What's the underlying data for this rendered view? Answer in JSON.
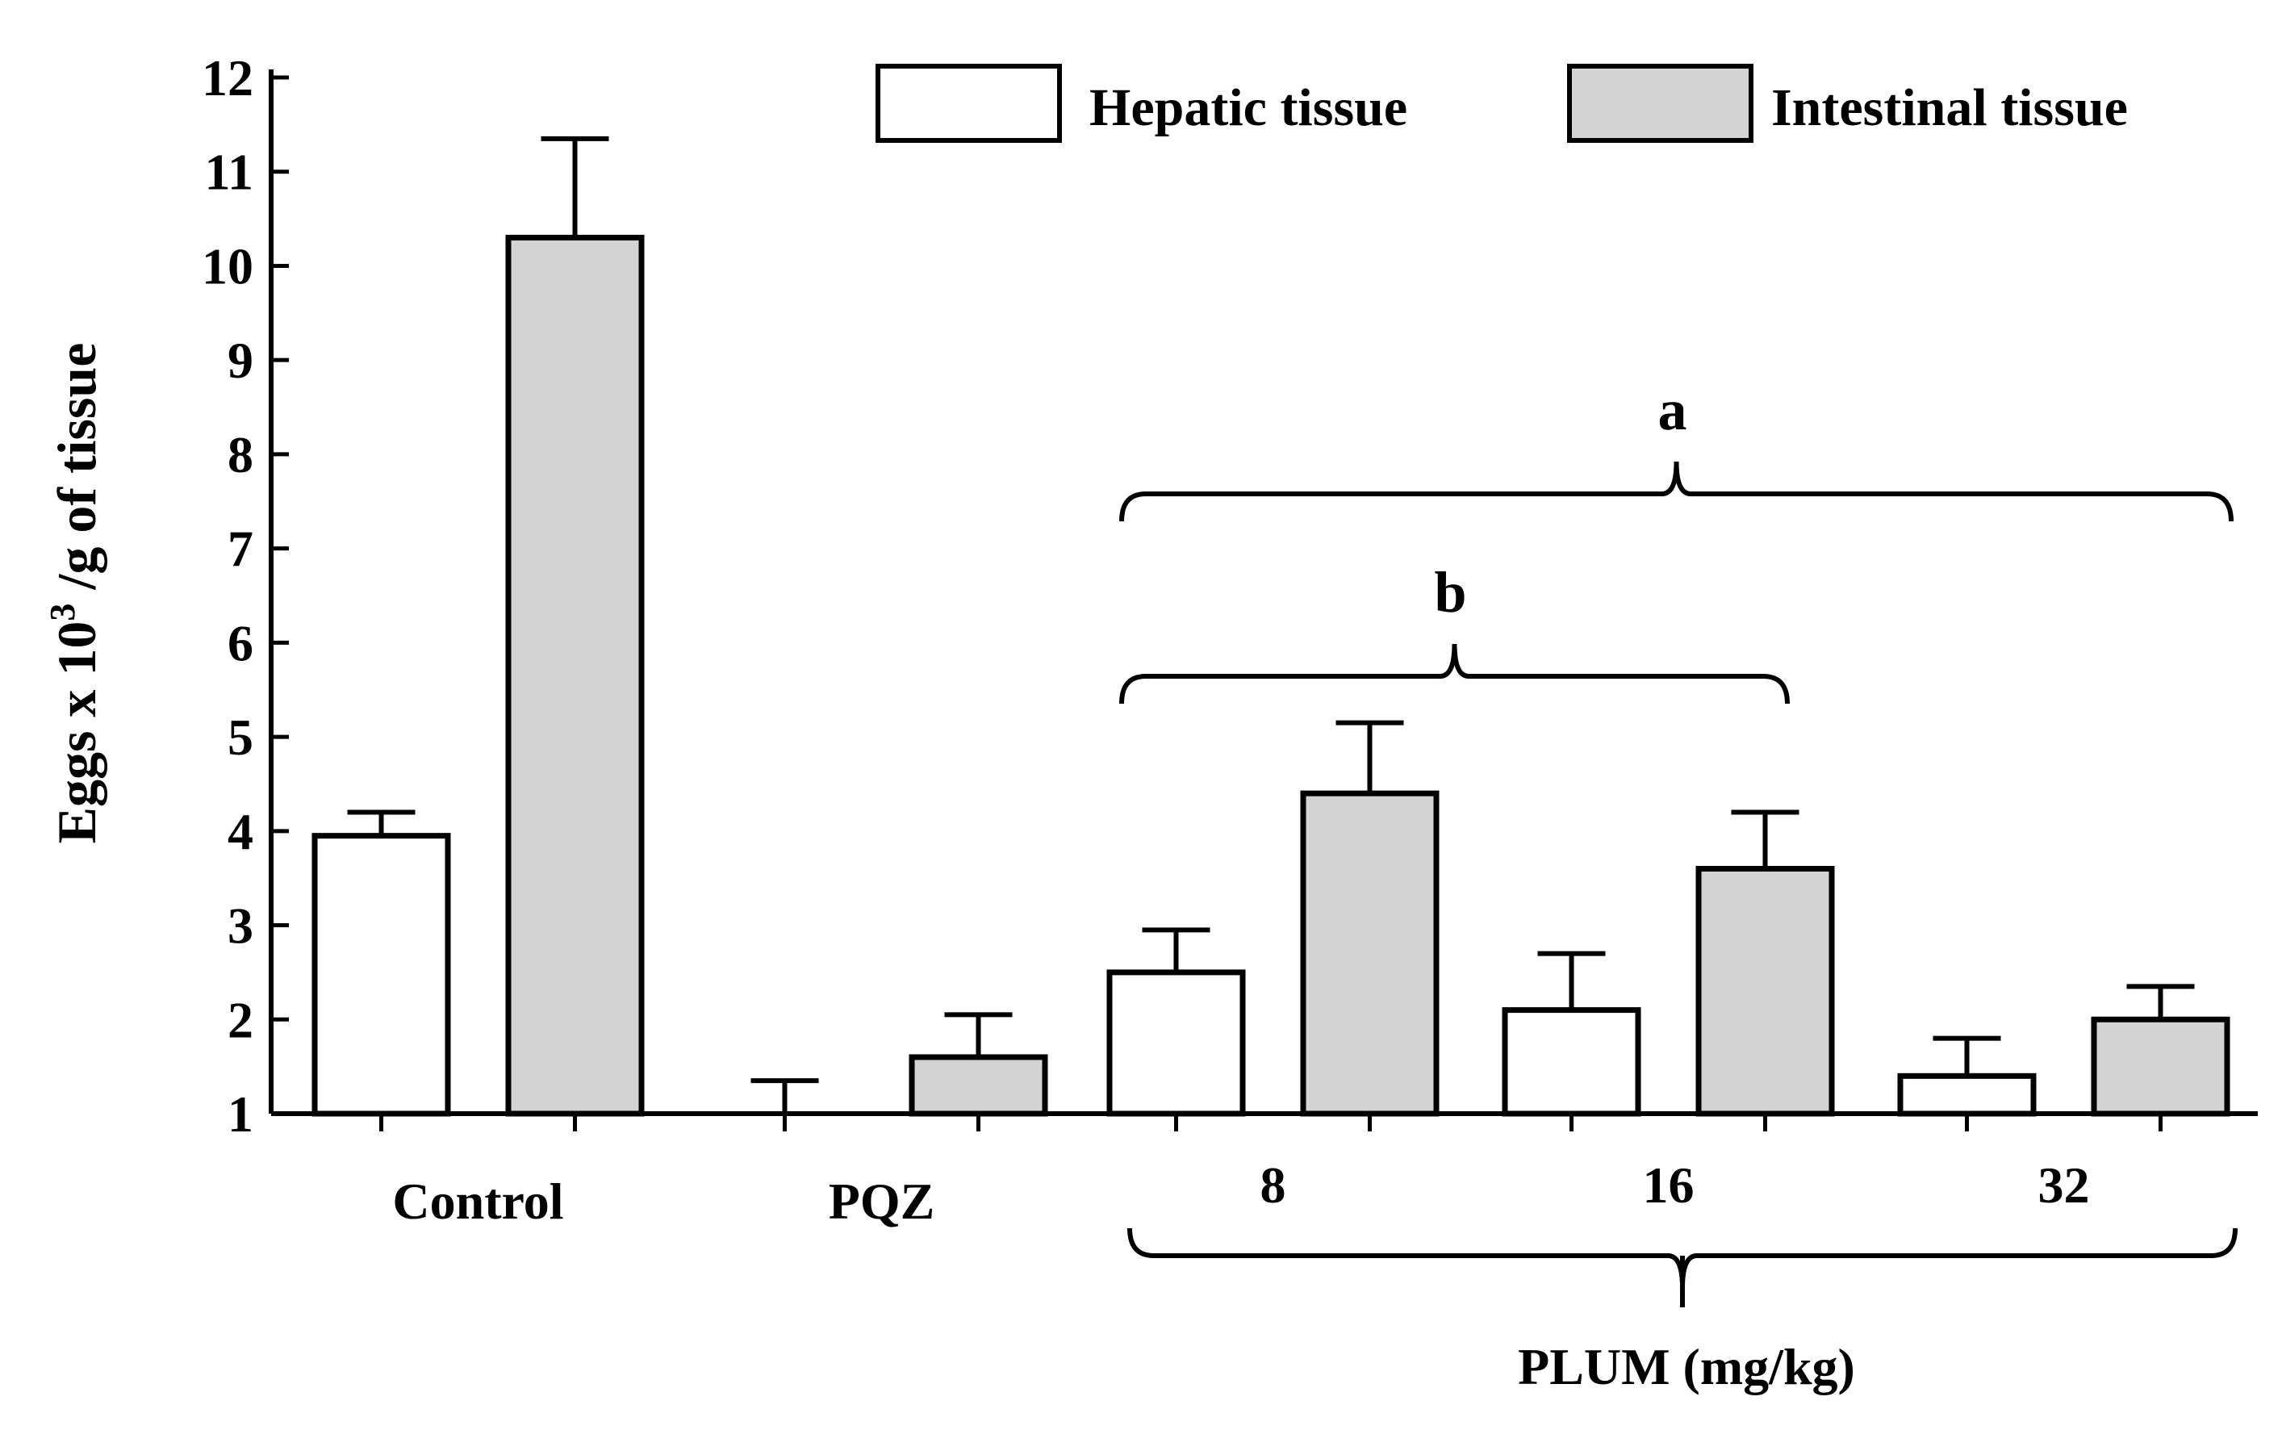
{
  "chart_data": {
    "type": "bar",
    "title": "",
    "xlabel": "",
    "ylabel": {
      "prefix": "Eggs x 10",
      "superscript": "3",
      "suffix": " /g of tissue"
    },
    "ylim": [
      1,
      12
    ],
    "yticks": [
      "1",
      "2",
      "3",
      "4",
      "5",
      "6",
      "7",
      "8",
      "9",
      "10",
      "11",
      "12"
    ],
    "categories": [
      "Control",
      "PQZ",
      "8",
      "16",
      "32"
    ],
    "group_label": "PLUM (mg/kg)",
    "series": [
      {
        "name": "Hepatic tissue",
        "color": "#ffffff",
        "values": [
          3.95,
          1.0,
          2.5,
          2.1,
          1.4
        ],
        "errors": [
          0.25,
          0.35,
          0.45,
          0.6,
          0.4
        ]
      },
      {
        "name": "Intestinal tissue",
        "color": "#d3d3d3",
        "values": [
          10.3,
          1.6,
          4.4,
          3.6,
          2.0
        ],
        "errors": [
          1.05,
          0.45,
          0.75,
          0.6,
          0.35
        ]
      }
    ],
    "annotations": [
      {
        "label": "a",
        "from_category": "8",
        "to_category": "32"
      },
      {
        "label": "b",
        "from_category": "8",
        "to_category": "16"
      }
    ],
    "legend": "top-right",
    "grid": false
  }
}
